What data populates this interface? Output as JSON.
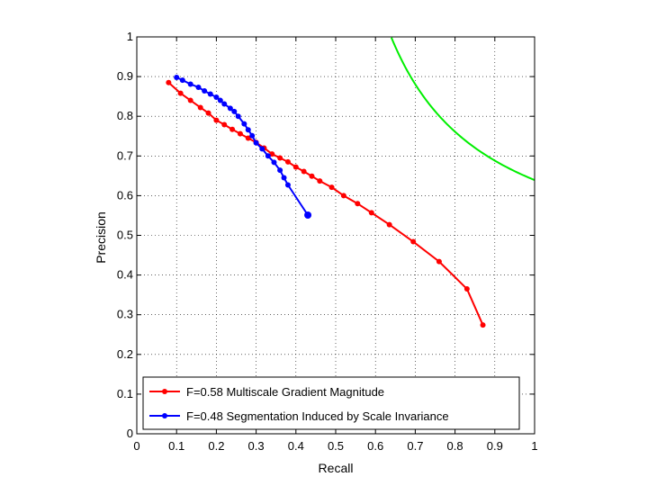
{
  "chart_data": {
    "type": "line",
    "title": "",
    "xlabel": "Recall",
    "ylabel": "Precision",
    "xlim": [
      0,
      1
    ],
    "ylim": [
      0,
      1
    ],
    "grid": true,
    "legend_position": "bottom-right",
    "xticks": [
      "0",
      "0.1",
      "0.2",
      "0.3",
      "0.4",
      "0.5",
      "0.6",
      "0.7",
      "0.8",
      "0.9",
      "1"
    ],
    "yticks": [
      "0",
      "0.1",
      "0.2",
      "0.3",
      "0.4",
      "0.5",
      "0.6",
      "0.7",
      "0.8",
      "0.9",
      "1"
    ],
    "series": [
      {
        "name": "F=0.58 Multiscale Gradient Magnitude",
        "color": "#ff0000",
        "marker": "dot",
        "x": [
          0.08,
          0.11,
          0.135,
          0.16,
          0.18,
          0.2,
          0.22,
          0.24,
          0.26,
          0.28,
          0.3,
          0.32,
          0.34,
          0.36,
          0.38,
          0.4,
          0.42,
          0.44,
          0.46,
          0.49,
          0.52,
          0.555,
          0.59,
          0.635,
          0.695,
          0.76,
          0.83,
          0.87
        ],
        "y": [
          0.885,
          0.858,
          0.84,
          0.822,
          0.808,
          0.79,
          0.779,
          0.767,
          0.756,
          0.745,
          0.734,
          0.72,
          0.705,
          0.695,
          0.685,
          0.672,
          0.661,
          0.649,
          0.637,
          0.621,
          0.6,
          0.58,
          0.557,
          0.527,
          0.484,
          0.434,
          0.365,
          0.274
        ]
      },
      {
        "name": "F=0.48 Segmentation Induced by Scale Invariance",
        "color": "#0000ff",
        "marker": "dot",
        "x": [
          0.1,
          0.115,
          0.135,
          0.155,
          0.17,
          0.185,
          0.2,
          0.21,
          0.22,
          0.235,
          0.245,
          0.255,
          0.27,
          0.28,
          0.29,
          0.3,
          0.315,
          0.33,
          0.345,
          0.36,
          0.37,
          0.38,
          0.43
        ],
        "y": [
          0.898,
          0.891,
          0.881,
          0.873,
          0.864,
          0.856,
          0.848,
          0.84,
          0.831,
          0.82,
          0.812,
          0.8,
          0.781,
          0.766,
          0.751,
          0.733,
          0.718,
          0.7,
          0.684,
          0.664,
          0.645,
          0.627,
          0.551
        ]
      },
      {
        "color": "#00ee00",
        "marker": "none",
        "function": "F-measure iso-curve F=0.78 (p = F*r / (2r - F))",
        "f_value": 0.78,
        "x_range": [
          0.64,
          1.0
        ]
      }
    ]
  }
}
